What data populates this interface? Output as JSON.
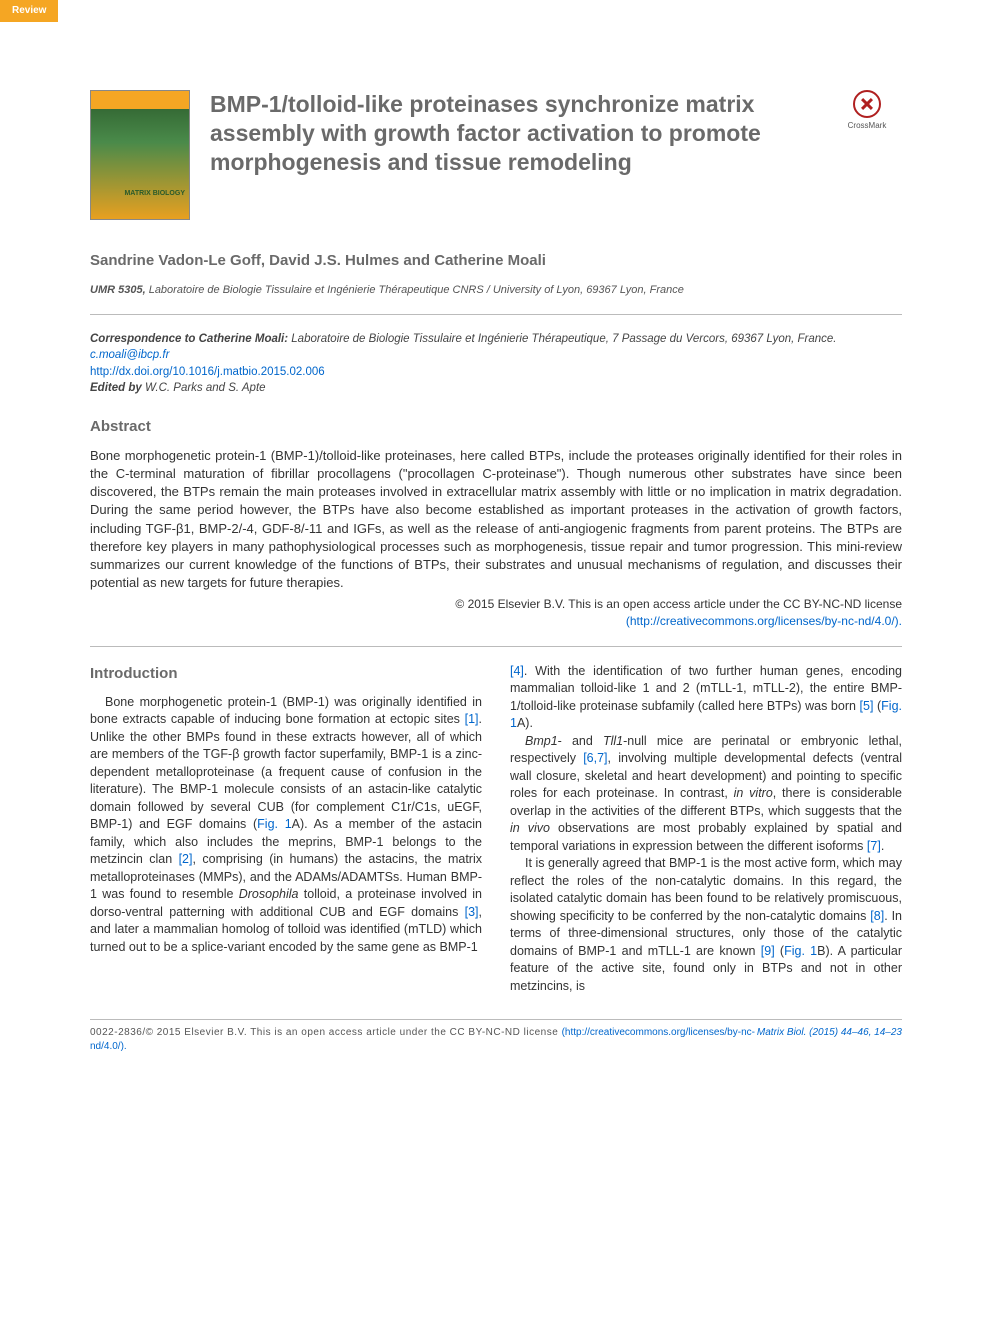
{
  "badge": {
    "label": "Review",
    "bg_color": "#f5a623",
    "text_color": "#ffffff"
  },
  "journal_cover": {
    "title_small": "MATRIX BIOLOGY"
  },
  "article": {
    "title": "BMP-1/tolloid-like proteinases synchronize matrix assembly with growth factor activation to promote morphogenesis and tissue remodeling",
    "title_color": "#6a6a6a",
    "title_fontsize": 23
  },
  "crossmark": {
    "label": "CrossMark"
  },
  "authors": "Sandrine Vadon-Le Goff, David J.S. Hulmes and Catherine Moali",
  "affiliation": {
    "lab": "UMR 5305,",
    "text": " Laboratoire de Biologie Tissulaire et Ingénierie Thérapeutique CNRS / University of Lyon, 69367 Lyon, France"
  },
  "correspondence": {
    "label": "Correspondence to Catherine Moali:",
    "text": " Laboratoire de Biologie Tissulaire et Ingénierie Thérapeutique, 7 Passage du Vercors, 69367 Lyon, France. ",
    "email": "c.moali@ibcp.fr"
  },
  "doi": {
    "url": "http://dx.doi.org/10.1016/j.matbio.2015.02.006"
  },
  "edited_by": {
    "label": "Edited by",
    "names": " W.C. Parks and S. Apte"
  },
  "abstract": {
    "heading": "Abstract",
    "text": "Bone morphogenetic protein-1 (BMP-1)/tolloid-like proteinases, here called BTPs, include the proteases originally identified for their roles in the C-terminal maturation of fibrillar procollagens (\"procollagen C-proteinase\"). Though numerous other substrates have since been discovered, the BTPs remain the main proteases involved in extracellular matrix assembly with little or no implication in matrix degradation. During the same period however, the BTPs have also become established as important proteases in the activation of growth factors, including TGF-β1, BMP-2/-4, GDF-8/-11 and IGFs, as well as the release of anti-angiogenic fragments from parent proteins. The BTPs are therefore key players in many pathophysiological processes such as morphogenesis, tissue repair and tumor progression. This mini-review summarizes our current knowledge of the functions of BTPs, their substrates and unusual mechanisms of regulation, and discusses their potential as new targets for future therapies."
  },
  "copyright": {
    "line1": "© 2015 Elsevier B.V. This is an open access article under the CC BY-NC-ND license",
    "license_url": "(http://creativecommons.org/licenses/by-nc-nd/4.0/)."
  },
  "body": {
    "intro_heading": "Introduction",
    "col1": {
      "p1a": "Bone morphogenetic protein-1 (BMP-1) was originally identified in bone extracts capable of inducing bone formation at ectopic sites ",
      "r1": "[1]",
      "p1b": ". Unlike the other BMPs found in these extracts however, all of which are members of the TGF-β growth factor superfamily, BMP-1 is a zinc-dependent metalloproteinase (a frequent cause of confusion in the literature). The BMP-1 molecule consists of an astacin-like catalytic domain followed by several CUB (for complement C1r/C1s, uEGF, BMP-1) and EGF domains (",
      "fig1a": "Fig. 1",
      "p1c": "A). As a member of the astacin family, which also includes the meprins, BMP-1 belongs to the metzincin clan ",
      "r2": "[2]",
      "p1d": ", comprising (in humans) the astacins, the matrix metalloproteinases (MMPs), and the ADAMs/ADAMTSs. Human BMP-1 was found to resemble ",
      "dros": "Drosophila",
      "p1e": " tolloid, a proteinase involved in dorso-ventral patterning with additional CUB and EGF domains ",
      "r3": "[3]",
      "p1f": ", and later a mammalian homolog of tolloid was identified (mTLD) which turned out to be a splice-variant encoded by the same gene as BMP-1"
    },
    "col2": {
      "p0a": "",
      "r4": "[4]",
      "p0b": ". With the identification of two further human genes, encoding mammalian tolloid-like 1 and 2 (mTLL-1, mTLL-2), the entire BMP-1/tolloid-like proteinase subfamily (called here BTPs) was born ",
      "r5": "[5]",
      "p0c": " (",
      "fig1a2": "Fig. 1",
      "p0d": "A).",
      "p1a": "Bmp1",
      "p1b": "- and ",
      "p1c": "Tll1",
      "p1d": "-null mice are perinatal or embryonic lethal, respectively ",
      "r67": "[6,7]",
      "p1e": ", involving multiple developmental defects (ventral wall closure, skeletal and heart development) and pointing to specific roles for each proteinase. In contrast, ",
      "invitro": "in vitro",
      "p1f": ", there is considerable overlap in the activities of the different BTPs, which suggests that the ",
      "invivo": "in vivo",
      "p1g": " observations are most probably explained by spatial and temporal variations in expression between the different isoforms ",
      "r7": "[7]",
      "p1h": ".",
      "p2a": "It is generally agreed that BMP-1 is the most active form, which may reflect the roles of the non-catalytic domains. In this regard, the isolated catalytic domain has been found to be relatively promiscuous, showing specificity to be conferred by the non-catalytic domains ",
      "r8": "[8]",
      "p2b": ". In terms of three-dimensional structures, only those of the catalytic domains of BMP-1 and mTLL-1 are known ",
      "r9": "[9]",
      "p2c": " (",
      "fig1b": "Fig. 1",
      "p2d": "B). A particular feature of the active site, found only in BTPs and not in other metzincins, is"
    }
  },
  "footer": {
    "left": "0022-2836/© 2015 Elsevier B.V. This is an open access article under the CC BY-NC-ND license",
    "license_url": "(http://creativecommons.org/licenses/by-nc-nd/4.0/).",
    "right": "Matrix Biol. (2015) 44–46, 14–23"
  },
  "colors": {
    "link": "#0066cc",
    "heading": "#6a6a6a",
    "text": "#333333",
    "rule": "#bbbbbb",
    "accent": "#f5a623"
  }
}
